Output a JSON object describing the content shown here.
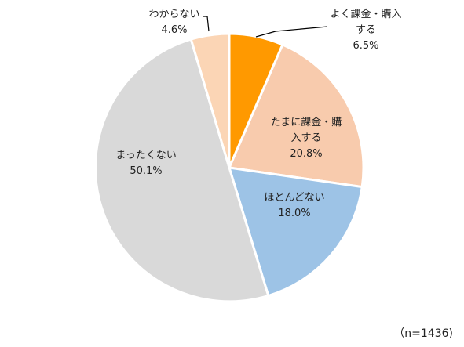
{
  "chart_data": {
    "type": "pie",
    "title": "",
    "slices": [
      {
        "label_lines": [
          "よく課金・購入",
          "する"
        ],
        "value": 6.5,
        "value_label": "6.5%",
        "color": "#FF9900"
      },
      {
        "label_lines": [
          "たまに課金・購",
          "入する"
        ],
        "value": 20.8,
        "value_label": "20.8%",
        "color": "#F8CBAD"
      },
      {
        "label_lines": [
          "ほとんどない"
        ],
        "value": 18.0,
        "value_label": "18.0%",
        "color": "#9DC3E6"
      },
      {
        "label_lines": [
          "まったくない"
        ],
        "value": 50.1,
        "value_label": "50.1%",
        "color": "#D9D9D9"
      },
      {
        "label_lines": [
          "わからない"
        ],
        "value": 4.6,
        "value_label": "4.6%",
        "color": "#FBD5B5"
      }
    ],
    "note": "（n=1436)"
  }
}
